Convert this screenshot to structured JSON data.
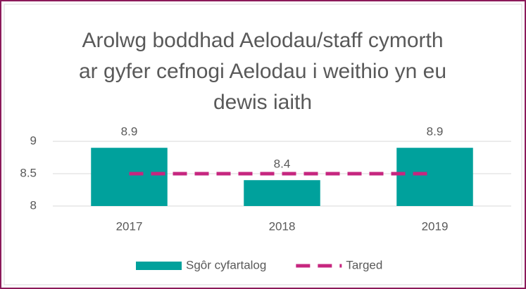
{
  "chart_data": {
    "type": "bar",
    "title": "Arolwg boddhad Aelodau/staff cymorth ar gyfer cefnogi Aelodau i weithio yn eu dewis iaith",
    "categories": [
      "2017",
      "2018",
      "2019"
    ],
    "series": [
      {
        "name": "Sgôr cyfartalog",
        "type": "bar",
        "color": "#00a19c",
        "values": [
          8.9,
          8.4,
          8.9
        ]
      },
      {
        "name": "Targed",
        "type": "line",
        "color": "#c6267f",
        "dashed": true,
        "values": [
          8.5,
          8.5,
          8.5
        ]
      }
    ],
    "ylim": [
      8,
      9
    ],
    "yticks": [
      8,
      8.5,
      9
    ],
    "grid": true,
    "legend": "bottom"
  }
}
